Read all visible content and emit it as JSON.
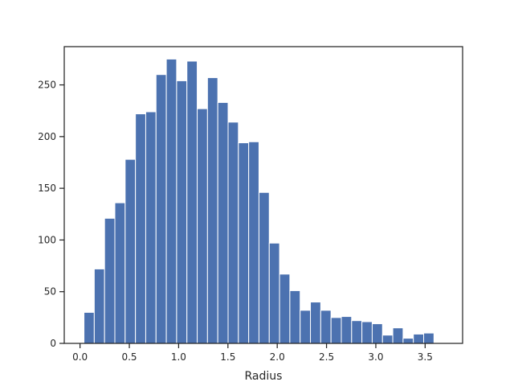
{
  "chart_data": {
    "type": "bar",
    "subtype": "histogram",
    "title": "",
    "xlabel": "Radius",
    "ylabel": "",
    "xlim": [
      -0.16,
      3.88
    ],
    "ylim": [
      0,
      287
    ],
    "xticks": [
      "0.0",
      "0.5",
      "1.0",
      "1.5",
      "2.0",
      "2.5",
      "3.0",
      "3.5"
    ],
    "yticks": [
      "0",
      "50",
      "100",
      "150",
      "200",
      "250"
    ],
    "bar_color": "#4c72b0",
    "bins": {
      "start": 0.04,
      "width": 0.1044,
      "counts": [
        30,
        72,
        121,
        136,
        178,
        222,
        224,
        260,
        275,
        254,
        273,
        227,
        257,
        233,
        214,
        194,
        195,
        146,
        97,
        67,
        51,
        32,
        40,
        32,
        25,
        26,
        22,
        21,
        19,
        8,
        15,
        5,
        9,
        10
      ]
    },
    "grid": false,
    "legend": "none"
  }
}
